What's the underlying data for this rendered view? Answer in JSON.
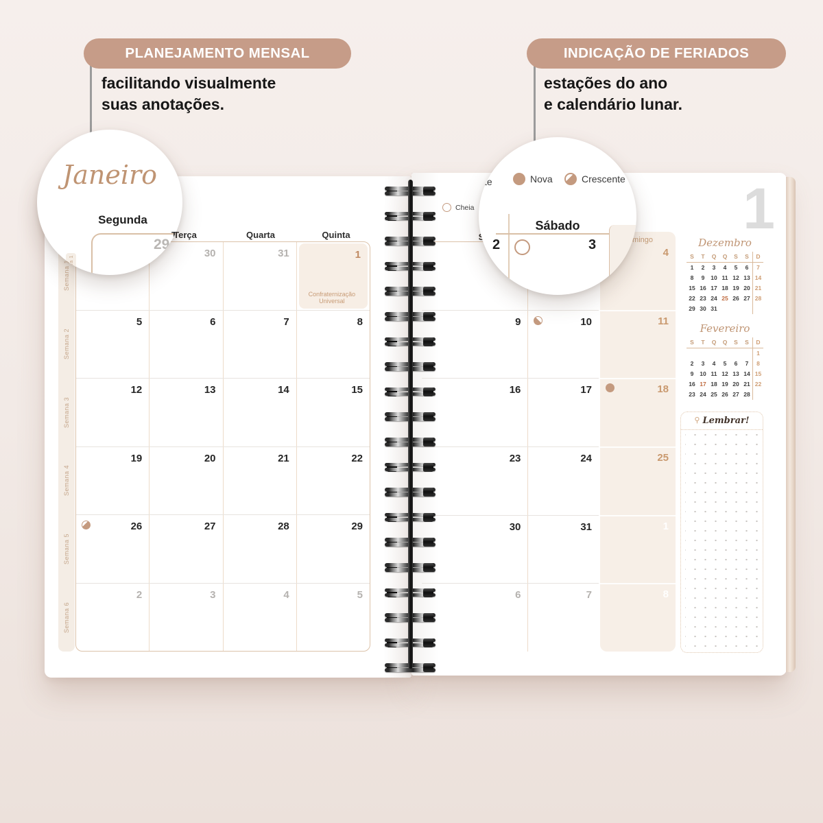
{
  "colors": {
    "background": "#f2eae6",
    "badge": "#c69c88",
    "accent_tan": "#bf9473",
    "date_tan": "#c9996f",
    "holiday_bg": "#f7eee5",
    "muted_gray": "#b5b2af",
    "highlight_orange": "#bf6a3e"
  },
  "badges": {
    "left": {
      "label": "PLANEJAMENTO MENSAL",
      "description_lines": [
        "facilitando visualmente",
        "suas anotações."
      ]
    },
    "right": {
      "label": "INDICAÇÃO DE FERIADOS",
      "description_lines": [
        "estações do ano",
        "e calendário lunar."
      ]
    }
  },
  "magnifier_left": {
    "month_title": "Janeiro",
    "weekday": "Segunda",
    "date": "29",
    "partial_weekday": "Terça",
    "week_label": "Semana 1"
  },
  "magnifier_right": {
    "legend_partial": "te",
    "legend_items": [
      {
        "name": "Nova",
        "phase": "nova"
      },
      {
        "name": "Crescente",
        "phase": "crescente"
      }
    ],
    "weekday": "Sábado",
    "date_left": "2",
    "date_right": "3",
    "moon": "cheia"
  },
  "left_page": {
    "weekday_headers": [
      "Segunda",
      "Terça",
      "Quarta",
      "Quinta"
    ],
    "weeks": [
      {
        "label": "Semana 1",
        "days": [
          {
            "n": "29",
            "muted": true
          },
          {
            "n": "30",
            "muted": true
          },
          {
            "n": "31",
            "muted": true
          },
          {
            "n": "1",
            "holiday": "Confraternização Universal"
          }
        ]
      },
      {
        "label": "Semana 2",
        "days": [
          {
            "n": "5"
          },
          {
            "n": "6"
          },
          {
            "n": "7"
          },
          {
            "n": "8"
          }
        ]
      },
      {
        "label": "Semana 3",
        "days": [
          {
            "n": "12"
          },
          {
            "n": "13"
          },
          {
            "n": "14"
          },
          {
            "n": "15"
          }
        ]
      },
      {
        "label": "Semana 4",
        "days": [
          {
            "n": "19"
          },
          {
            "n": "20"
          },
          {
            "n": "21"
          },
          {
            "n": "22"
          }
        ]
      },
      {
        "label": "Semana 5",
        "days": [
          {
            "n": "26",
            "moon": "crescente"
          },
          {
            "n": "27"
          },
          {
            "n": "28"
          },
          {
            "n": "29"
          }
        ]
      },
      {
        "label": "Semana 6",
        "days": [
          {
            "n": "2",
            "muted": true
          },
          {
            "n": "3",
            "muted": true
          },
          {
            "n": "4",
            "muted": true
          },
          {
            "n": "5",
            "muted": true
          }
        ]
      }
    ]
  },
  "right_page": {
    "month_number": "1",
    "legend": [
      {
        "name": "Cheia",
        "phase": "cheia"
      },
      {
        "name": "Minguante",
        "phase": "minguante"
      },
      {
        "name": "Nova",
        "phase": "nova"
      },
      {
        "name": "Crescente",
        "phase": "crescente"
      }
    ],
    "weekday_headers": [
      "Sexta",
      "Sábado"
    ],
    "sunday_header": "Domingo",
    "weeks": [
      {
        "days": [
          {
            "n": "2"
          },
          {
            "n": "3",
            "moon": "cheia"
          }
        ],
        "sunday": {
          "n": "4"
        }
      },
      {
        "days": [
          {
            "n": "9"
          },
          {
            "n": "10",
            "moon": "minguante"
          }
        ],
        "sunday": {
          "n": "11"
        }
      },
      {
        "days": [
          {
            "n": "16"
          },
          {
            "n": "17"
          }
        ],
        "sunday": {
          "n": "18",
          "moon": "nova"
        }
      },
      {
        "days": [
          {
            "n": "23"
          },
          {
            "n": "24"
          }
        ],
        "sunday": {
          "n": "25"
        }
      },
      {
        "days": [
          {
            "n": "30"
          },
          {
            "n": "31"
          }
        ],
        "sunday": {
          "n": "1",
          "faint": true
        }
      },
      {
        "days": [
          {
            "n": "6",
            "muted": true
          },
          {
            "n": "7",
            "muted": true
          }
        ],
        "sunday": {
          "n": "8",
          "faint": true
        }
      }
    ],
    "mini_calendars": [
      {
        "title": "Dezembro",
        "headers": [
          "S",
          "T",
          "Q",
          "Q",
          "S",
          "S",
          "D"
        ],
        "rows": [
          [
            "1",
            "2",
            "3",
            "4",
            "5",
            "6",
            "7"
          ],
          [
            "8",
            "9",
            "10",
            "11",
            "12",
            "13",
            "14"
          ],
          [
            "15",
            "16",
            "17",
            "18",
            "19",
            "20",
            "21"
          ],
          [
            "22",
            "23",
            "24",
            "25",
            "26",
            "27",
            "28"
          ],
          [
            "29",
            "30",
            "31",
            "",
            "",
            "",
            ""
          ]
        ],
        "highlight": "25"
      },
      {
        "title": "Fevereiro",
        "headers": [
          "S",
          "T",
          "Q",
          "Q",
          "S",
          "S",
          "D"
        ],
        "rows": [
          [
            "",
            "",
            "",
            "",
            "",
            "",
            "1"
          ],
          [
            "2",
            "3",
            "4",
            "5",
            "6",
            "7",
            "8"
          ],
          [
            "9",
            "10",
            "11",
            "12",
            "13",
            "14",
            "15"
          ],
          [
            "16",
            "17",
            "18",
            "19",
            "20",
            "21",
            "22"
          ],
          [
            "23",
            "24",
            "25",
            "26",
            "27",
            "28",
            ""
          ]
        ],
        "highlight": "17"
      }
    ],
    "notes_box": {
      "title": "Lembrar!"
    }
  }
}
